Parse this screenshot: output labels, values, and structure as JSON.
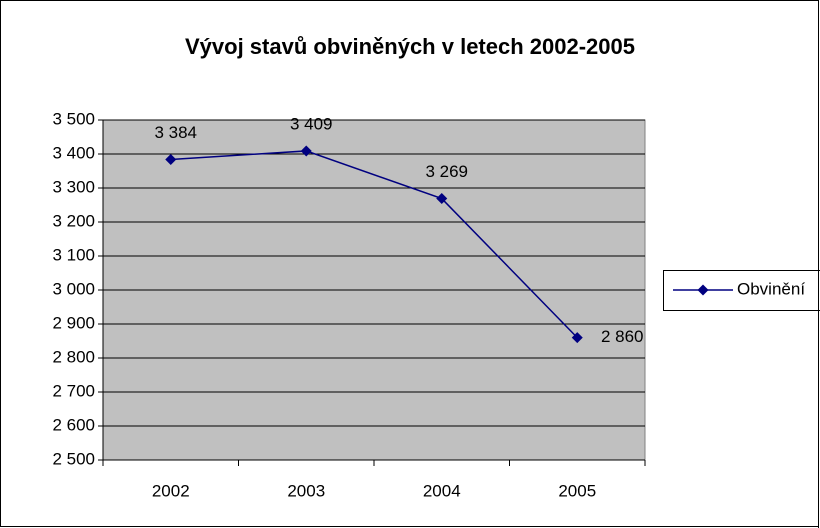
{
  "chart_data": {
    "type": "line",
    "title": "Vývoj stavů obviněných v letech 2002-2005",
    "categories": [
      "2002",
      "2003",
      "2004",
      "2005"
    ],
    "series": [
      {
        "name": "Obvinění",
        "color": "#000080",
        "values": [
          3384,
          3409,
          3269,
          2860
        ],
        "value_labels": [
          "3 384",
          "3 409",
          "3 269",
          "2 860"
        ]
      }
    ],
    "ylim": [
      2500,
      3500
    ],
    "yticks": [
      {
        "value": 2500,
        "label": "2 500"
      },
      {
        "value": 2600,
        "label": "2 600"
      },
      {
        "value": 2700,
        "label": "2 700"
      },
      {
        "value": 2800,
        "label": "2 800"
      },
      {
        "value": 2900,
        "label": "2 900"
      },
      {
        "value": 3000,
        "label": "3 000"
      },
      {
        "value": 3100,
        "label": "3 100"
      },
      {
        "value": 3200,
        "label": "3 200"
      },
      {
        "value": 3300,
        "label": "3 300"
      },
      {
        "value": 3400,
        "label": "3 400"
      },
      {
        "value": 3500,
        "label": "3 500"
      }
    ],
    "grid": true,
    "legend": "right",
    "plot_background": "#c0c0c0"
  }
}
